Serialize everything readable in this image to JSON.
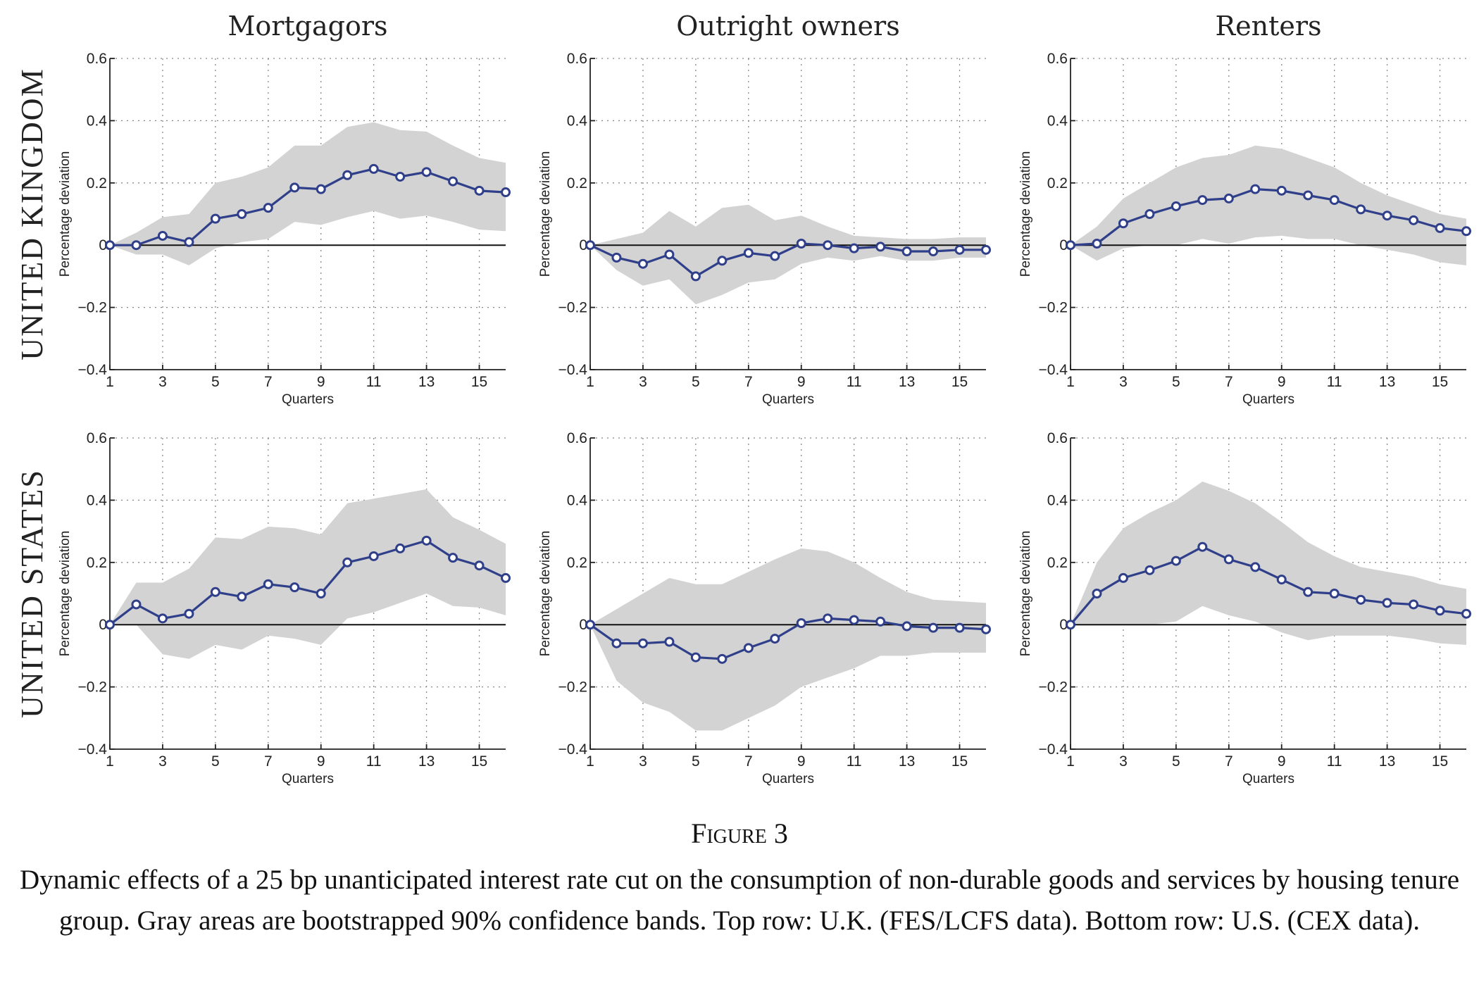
{
  "figure": {
    "label": "Figure 3",
    "caption": "Dynamic effects of a 25 bp unanticipated interest rate cut on the consumption of non-durable goods and services by housing tenure group. Gray areas are bootstrapped 90% confidence bands. Top row: U.K. (FES/LCFS data). Bottom row: U.S. (CEX data)."
  },
  "columns": [
    "Mortgagors",
    "Outright owners",
    "Renters"
  ],
  "rows": [
    "UNITED KINGDOM",
    "UNITED STATES"
  ],
  "colors": {
    "line": "#2f3f8a",
    "band": "#d3d3d3"
  },
  "chart_data": [
    {
      "type": "line",
      "row": "UNITED KINGDOM",
      "column": "Mortgagors",
      "xlabel": "Quarters",
      "ylabel": "Percentage deviation",
      "xlim": [
        1,
        16
      ],
      "ylim": [
        -0.4,
        0.6
      ],
      "xticks": [
        "1",
        "3",
        "5",
        "7",
        "9",
        "11",
        "13",
        "15"
      ],
      "yticks": [
        "−0.4",
        "−0.2",
        "0",
        "0.2",
        "0.4",
        "0.6"
      ],
      "x": [
        1,
        2,
        3,
        4,
        5,
        6,
        7,
        8,
        9,
        10,
        11,
        12,
        13,
        14,
        15,
        16
      ],
      "y": [
        0,
        0.0,
        0.03,
        0.01,
        0.085,
        0.1,
        0.12,
        0.185,
        0.18,
        0.225,
        0.245,
        0.22,
        0.235,
        0.205,
        0.175,
        0.17
      ],
      "upper": [
        0,
        0.04,
        0.09,
        0.1,
        0.2,
        0.22,
        0.25,
        0.32,
        0.32,
        0.38,
        0.395,
        0.37,
        0.365,
        0.32,
        0.28,
        0.265
      ],
      "lower": [
        0,
        -0.03,
        -0.03,
        -0.065,
        -0.01,
        0.01,
        0.02,
        0.075,
        0.065,
        0.09,
        0.11,
        0.085,
        0.095,
        0.075,
        0.05,
        0.045
      ]
    },
    {
      "type": "line",
      "row": "UNITED KINGDOM",
      "column": "Outright owners",
      "xlabel": "Quarters",
      "ylabel": "Percentage deviation",
      "xlim": [
        1,
        16
      ],
      "ylim": [
        -0.4,
        0.6
      ],
      "xticks": [
        "1",
        "3",
        "5",
        "7",
        "9",
        "11",
        "13",
        "15"
      ],
      "yticks": [
        "−0.4",
        "−0.2",
        "0",
        "0.2",
        "0.4",
        "0.6"
      ],
      "x": [
        1,
        2,
        3,
        4,
        5,
        6,
        7,
        8,
        9,
        10,
        11,
        12,
        13,
        14,
        15,
        16
      ],
      "y": [
        0,
        -0.04,
        -0.06,
        -0.03,
        -0.1,
        -0.05,
        -0.025,
        -0.035,
        0.005,
        0.0,
        -0.01,
        -0.005,
        -0.02,
        -0.02,
        -0.015,
        -0.015
      ],
      "upper": [
        0,
        0.02,
        0.04,
        0.11,
        0.06,
        0.12,
        0.13,
        0.08,
        0.095,
        0.06,
        0.03,
        0.025,
        0.02,
        0.02,
        0.025,
        0.025
      ],
      "lower": [
        0,
        -0.08,
        -0.13,
        -0.11,
        -0.19,
        -0.16,
        -0.12,
        -0.11,
        -0.06,
        -0.04,
        -0.05,
        -0.035,
        -0.05,
        -0.05,
        -0.04,
        -0.04
      ]
    },
    {
      "type": "line",
      "row": "UNITED KINGDOM",
      "column": "Renters",
      "xlabel": "Quarters",
      "ylabel": "Percentage deviation",
      "xlim": [
        1,
        16
      ],
      "ylim": [
        -0.4,
        0.6
      ],
      "xticks": [
        "1",
        "3",
        "5",
        "7",
        "9",
        "11",
        "13",
        "15"
      ],
      "yticks": [
        "−0.4",
        "−0.2",
        "0",
        "0.2",
        "0.4",
        "0.6"
      ],
      "x": [
        1,
        2,
        3,
        4,
        5,
        6,
        7,
        8,
        9,
        10,
        11,
        12,
        13,
        14,
        15,
        16
      ],
      "y": [
        0,
        0.005,
        0.07,
        0.1,
        0.125,
        0.145,
        0.15,
        0.18,
        0.175,
        0.16,
        0.145,
        0.115,
        0.095,
        0.08,
        0.055,
        0.045
      ],
      "upper": [
        0,
        0.06,
        0.15,
        0.2,
        0.25,
        0.28,
        0.29,
        0.32,
        0.31,
        0.28,
        0.25,
        0.2,
        0.16,
        0.13,
        0.1,
        0.085
      ],
      "lower": [
        0,
        -0.05,
        -0.01,
        0.0,
        0.0,
        0.02,
        0.005,
        0.025,
        0.03,
        0.02,
        0.02,
        0.0,
        -0.015,
        -0.03,
        -0.055,
        -0.065
      ]
    },
    {
      "type": "line",
      "row": "UNITED STATES",
      "column": "Mortgagors",
      "xlabel": "Quarters",
      "ylabel": "Percentage deviation",
      "xlim": [
        1,
        16
      ],
      "ylim": [
        -0.4,
        0.6
      ],
      "xticks": [
        "1",
        "3",
        "5",
        "7",
        "9",
        "11",
        "13",
        "15"
      ],
      "yticks": [
        "−0.4",
        "−0.2",
        "0",
        "0.2",
        "0.4",
        "0.6"
      ],
      "x": [
        1,
        2,
        3,
        4,
        5,
        6,
        7,
        8,
        9,
        10,
        11,
        12,
        13,
        14,
        15,
        16
      ],
      "y": [
        0,
        0.065,
        0.02,
        0.035,
        0.105,
        0.09,
        0.13,
        0.12,
        0.1,
        0.2,
        0.22,
        0.245,
        0.27,
        0.215,
        0.19,
        0.15
      ],
      "upper": [
        0,
        0.135,
        0.135,
        0.18,
        0.28,
        0.275,
        0.315,
        0.31,
        0.29,
        0.39,
        0.405,
        0.42,
        0.435,
        0.345,
        0.305,
        0.26
      ],
      "lower": [
        0,
        0.0,
        -0.095,
        -0.11,
        -0.065,
        -0.08,
        -0.035,
        -0.045,
        -0.065,
        0.02,
        0.04,
        0.07,
        0.1,
        0.06,
        0.055,
        0.03
      ]
    },
    {
      "type": "line",
      "row": "UNITED STATES",
      "column": "Outright owners",
      "xlabel": "Quarters",
      "ylabel": "Percentage deviation",
      "xlim": [
        1,
        16
      ],
      "ylim": [
        -0.4,
        0.6
      ],
      "xticks": [
        "1",
        "3",
        "5",
        "7",
        "9",
        "11",
        "13",
        "15"
      ],
      "yticks": [
        "−0.4",
        "−0.2",
        "0",
        "0.2",
        "0.4",
        "0.6"
      ],
      "x": [
        1,
        2,
        3,
        4,
        5,
        6,
        7,
        8,
        9,
        10,
        11,
        12,
        13,
        14,
        15,
        16
      ],
      "y": [
        0,
        -0.06,
        -0.06,
        -0.055,
        -0.105,
        -0.11,
        -0.075,
        -0.045,
        0.005,
        0.02,
        0.015,
        0.01,
        -0.005,
        -0.01,
        -0.01,
        -0.015
      ],
      "upper": [
        0,
        0.05,
        0.1,
        0.15,
        0.13,
        0.13,
        0.17,
        0.21,
        0.245,
        0.235,
        0.2,
        0.15,
        0.105,
        0.08,
        0.075,
        0.07
      ],
      "lower": [
        0,
        -0.18,
        -0.25,
        -0.28,
        -0.34,
        -0.34,
        -0.3,
        -0.26,
        -0.2,
        -0.17,
        -0.14,
        -0.1,
        -0.1,
        -0.09,
        -0.09,
        -0.09
      ]
    },
    {
      "type": "line",
      "row": "UNITED STATES",
      "column": "Renters",
      "xlabel": "Quarters",
      "ylabel": "Percentage deviation",
      "xlim": [
        1,
        16
      ],
      "ylim": [
        -0.4,
        0.6
      ],
      "xticks": [
        "1",
        "3",
        "5",
        "7",
        "9",
        "11",
        "13",
        "15"
      ],
      "yticks": [
        "−0.4",
        "−0.2",
        "0",
        "0.2",
        "0.4",
        "0.6"
      ],
      "x": [
        1,
        2,
        3,
        4,
        5,
        6,
        7,
        8,
        9,
        10,
        11,
        12,
        13,
        14,
        15,
        16
      ],
      "y": [
        0,
        0.1,
        0.15,
        0.175,
        0.205,
        0.25,
        0.21,
        0.185,
        0.145,
        0.105,
        0.1,
        0.08,
        0.07,
        0.065,
        0.045,
        0.035
      ],
      "upper": [
        0,
        0.2,
        0.31,
        0.36,
        0.4,
        0.46,
        0.43,
        0.39,
        0.33,
        0.265,
        0.22,
        0.185,
        0.17,
        0.155,
        0.13,
        0.115
      ],
      "lower": [
        0,
        0.0,
        0.0,
        0.0,
        0.01,
        0.06,
        0.03,
        0.01,
        -0.025,
        -0.05,
        -0.035,
        -0.035,
        -0.035,
        -0.045,
        -0.06,
        -0.065
      ]
    }
  ]
}
